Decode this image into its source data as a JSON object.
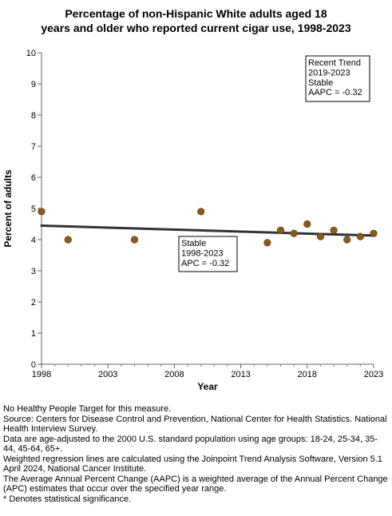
{
  "chart_data": {
    "type": "scatter",
    "title_lines": [
      "Percentage of non-Hispanic White adults aged 18",
      "years and older who reported current cigar use, 1998-2023"
    ],
    "xlabel": "Year",
    "ylabel": "Percent of adults",
    "xlim": [
      1998,
      2023
    ],
    "ylim": [
      0,
      10
    ],
    "x_ticks": [
      1998,
      2003,
      2008,
      2013,
      2018,
      2023
    ],
    "y_ticks": [
      0,
      1,
      2,
      3,
      4,
      5,
      6,
      7,
      8,
      9,
      10
    ],
    "grid": false,
    "points": [
      {
        "x": 1998,
        "y": 4.9
      },
      {
        "x": 2000,
        "y": 4.0
      },
      {
        "x": 2005,
        "y": 4.0
      },
      {
        "x": 2010,
        "y": 4.9
      },
      {
        "x": 2015,
        "y": 3.9
      },
      {
        "x": 2016,
        "y": 4.3
      },
      {
        "x": 2017,
        "y": 4.2
      },
      {
        "x": 2018,
        "y": 4.5
      },
      {
        "x": 2019,
        "y": 4.1
      },
      {
        "x": 2020,
        "y": 4.3
      },
      {
        "x": 2021,
        "y": 4.0
      },
      {
        "x": 2022,
        "y": 4.1
      },
      {
        "x": 2023,
        "y": 4.2
      }
    ],
    "trend_line": [
      {
        "x": 1998,
        "y": 4.45
      },
      {
        "x": 2023,
        "y": 4.13
      }
    ],
    "point_color": "#8B5A1B",
    "line_color": "#333333",
    "annotations": [
      {
        "lines": [
          "Recent Trend",
          "2019-2023",
          "Stable",
          "AAPC = -0.32"
        ]
      },
      {
        "lines": [
          "Stable",
          "1998-2023",
          "APC = -0.32"
        ]
      }
    ]
  },
  "footnotes": [
    "No Healthy People Target for this measure.",
    "Source: Centers for Disease Control and Prevention, National Center for Health Statistics. National Health Interview Survey.",
    "Data are age-adjusted to the 2000 U.S. standard population using age groups: 18-24, 25-34, 35-44, 45-64, 65+.",
    "Weighted regression lines are calculated using the Joinpoint Trend Analysis Software, Version 5.1 April 2024, National Cancer Institute.",
    "The Average Annual Percent Change (AAPC) is a weighted average of the Annual Percent Change (APC) estimates that occur over the specified year range.",
    "* Denotes statistical significance."
  ]
}
